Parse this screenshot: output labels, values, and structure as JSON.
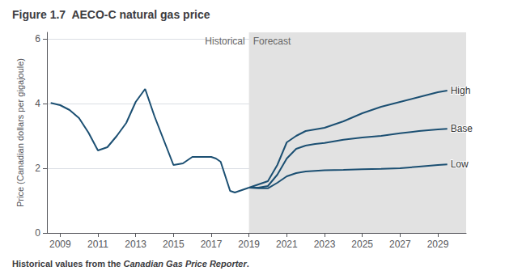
{
  "chart_data": {
    "type": "line",
    "title": "Figure 1.7  AECO-C natural gas price",
    "ylabel": "Price (Canadian dollars per gigajoule)",
    "footnote": [
      "Historical values from the ",
      "Canadian Gas Price Reporter",
      "."
    ],
    "region_labels": [
      "Historical",
      "Forecast"
    ],
    "forecast": {
      "start": 2019,
      "color": "#e2e2e2"
    },
    "xlim": [
      2008.3,
      2030.5
    ],
    "xticks": [
      2009,
      2011,
      2013,
      2015,
      2017,
      2019,
      2021,
      2023,
      2025,
      2027,
      2029
    ],
    "ylim": [
      0,
      6.2
    ],
    "yticks": [
      0,
      2,
      4,
      6
    ],
    "grid": true,
    "series": [
      {
        "color": "#1b4f72",
        "x": [
          2008.5,
          2009,
          2009.5,
          2010,
          2010.5,
          2011,
          2011.5,
          2012,
          2012.5,
          2013,
          2013.5,
          2014,
          2014.5,
          2015,
          2015.5,
          2016,
          2016.5,
          2017,
          2017.25,
          2017.5,
          2018,
          2018.25,
          2018.5,
          2019
        ],
        "values": [
          4.02,
          3.95,
          3.8,
          3.55,
          3.1,
          2.55,
          2.65,
          3.0,
          3.4,
          4.05,
          4.45,
          3.6,
          2.85,
          2.1,
          2.15,
          2.35,
          2.35,
          2.35,
          2.3,
          2.2,
          1.3,
          1.25,
          1.3,
          1.4
        ]
      },
      {
        "name": "High",
        "color": "#1b4f72",
        "x": [
          2019,
          2019.5,
          2020,
          2020.5,
          2021,
          2021.5,
          2022,
          2022.5,
          2023,
          2024,
          2025,
          2026,
          2027,
          2028,
          2029,
          2029.5
        ],
        "values": [
          1.4,
          1.5,
          1.6,
          2.1,
          2.8,
          3.0,
          3.15,
          3.2,
          3.25,
          3.45,
          3.7,
          3.9,
          4.05,
          4.2,
          4.35,
          4.4
        ]
      },
      {
        "name": "Base",
        "color": "#1b4f72",
        "x": [
          2019,
          2019.5,
          2020,
          2020.5,
          2021,
          2021.5,
          2022,
          2022.5,
          2023,
          2024,
          2025,
          2026,
          2027,
          2028,
          2029,
          2029.5
        ],
        "values": [
          1.4,
          1.4,
          1.45,
          1.8,
          2.3,
          2.6,
          2.7,
          2.75,
          2.78,
          2.88,
          2.95,
          3.0,
          3.08,
          3.15,
          3.2,
          3.22
        ]
      },
      {
        "name": "Low",
        "color": "#1b4f72",
        "x": [
          2019,
          2019.5,
          2020,
          2020.5,
          2021,
          2021.5,
          2022,
          2022.5,
          2023,
          2024,
          2025,
          2026,
          2027,
          2028,
          2029,
          2029.5
        ],
        "values": [
          1.4,
          1.38,
          1.38,
          1.55,
          1.75,
          1.85,
          1.9,
          1.92,
          1.94,
          1.95,
          1.97,
          1.98,
          2.0,
          2.05,
          2.1,
          2.12
        ]
      }
    ]
  }
}
